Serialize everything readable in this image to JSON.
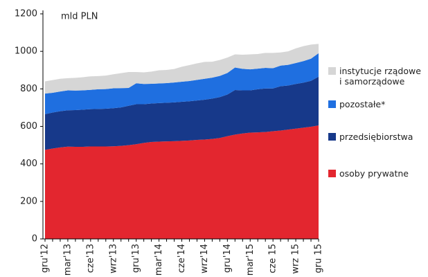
{
  "chart_data": {
    "type": "stacked_area",
    "y_unit_label": "mld PLN",
    "categories": [
      "gru'12",
      null,
      null,
      "mar'13",
      null,
      null,
      "cze'13",
      null,
      null,
      "wrz'13",
      null,
      null,
      "gru'13",
      null,
      null,
      "mar'14",
      null,
      null,
      "cze'14",
      null,
      null,
      "wrz'14",
      null,
      null,
      "gru'14",
      null,
      null,
      "mar'15",
      null,
      null,
      "cze 15",
      null,
      null,
      "wrz 15",
      null,
      null,
      "gru 15"
    ],
    "series": [
      {
        "name": "osoby prywatne",
        "color": "#e3262f",
        "values": [
          475,
          482,
          488,
          492,
          491,
          491,
          493,
          493,
          493,
          494,
          496,
          500,
          505,
          512,
          517,
          519,
          520,
          521,
          523,
          525,
          528,
          530,
          533,
          538,
          548,
          556,
          562,
          567,
          568,
          570,
          574,
          578,
          583,
          588,
          593,
          598,
          605
        ]
      },
      {
        "name": "przedsiębiorstwa",
        "color": "#17398a",
        "values": [
          190,
          192,
          193,
          194,
          196,
          198,
          199,
          200,
          201,
          203,
          205,
          210,
          213,
          206,
          205,
          205,
          206,
          207,
          208,
          209,
          210,
          212,
          215,
          218,
          222,
          238,
          230,
          225,
          230,
          232,
          228,
          236,
          235,
          238,
          240,
          245,
          260
        ]
      },
      {
        "name": "pozostałe*",
        "color": "#1f6fe0",
        "values": [
          110,
          105,
          105,
          106,
          104,
          103,
          103,
          105,
          105,
          106,
          103,
          95,
          112,
          108,
          105,
          105,
          105,
          106,
          107,
          108,
          110,
          112,
          112,
          113,
          115,
          120,
          115,
          112,
          110,
          110,
          108,
          110,
          110,
          112,
          115,
          118,
          125
        ]
      },
      {
        "name": "instytucje rządowe i samorządowe",
        "color": "#d6d6d6",
        "values": [
          65,
          68,
          68,
          65,
          68,
          70,
          72,
          70,
          72,
          75,
          80,
          85,
          60,
          62,
          65,
          70,
          70,
          72,
          80,
          85,
          88,
          90,
          85,
          85,
          82,
          70,
          75,
          80,
          78,
          80,
          82,
          70,
          72,
          78,
          80,
          75,
          50
        ]
      }
    ],
    "ylim": [
      0,
      1200
    ],
    "yticks": [
      0,
      200,
      400,
      600,
      800,
      1000,
      1200
    ],
    "legend": "right"
  }
}
